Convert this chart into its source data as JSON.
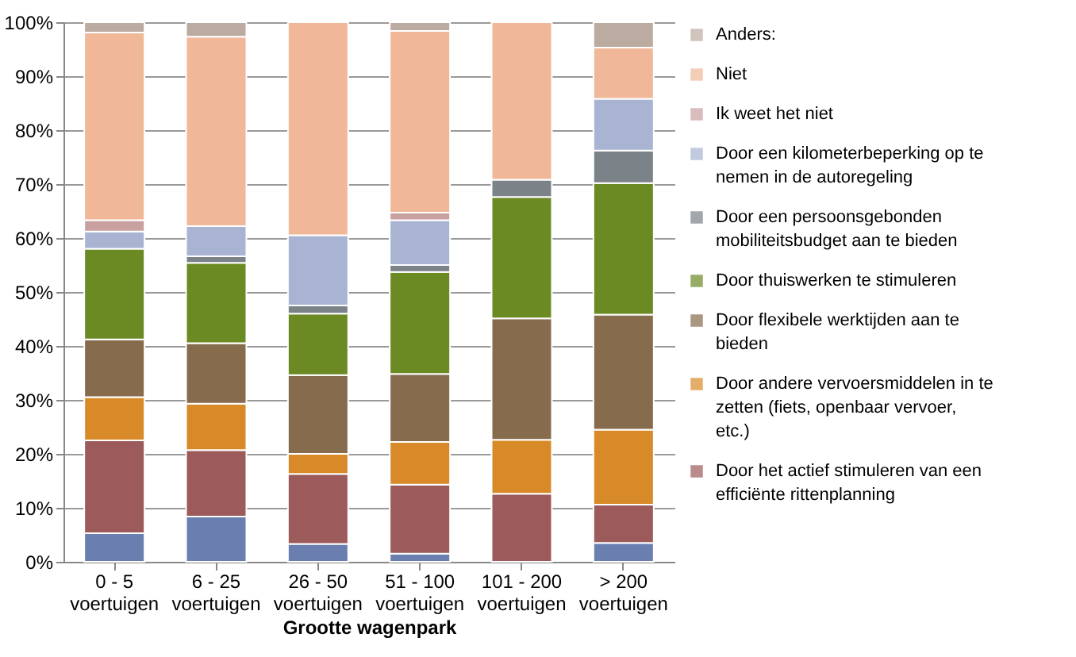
{
  "chart_data": {
    "type": "bar",
    "stacked": true,
    "xlabel": "Grootte wagenpark",
    "categories": [
      "0 - 5 voertuigen",
      "6 - 25 voertuigen",
      "26 - 50 voertuigen",
      "51 - 100 voertuigen",
      "101 - 200 voertuigen",
      "> 200 voertuigen"
    ],
    "ylim": [
      0,
      100
    ],
    "yticks": [
      {
        "value": 0,
        "label": "0%"
      },
      {
        "value": 10,
        "label": "10%"
      },
      {
        "value": 20,
        "label": "20%"
      },
      {
        "value": 30,
        "label": "30%"
      },
      {
        "value": 40,
        "label": "40%"
      },
      {
        "value": 50,
        "label": "50%"
      },
      {
        "value": 60,
        "label": "60%"
      },
      {
        "value": 70,
        "label": "70%"
      },
      {
        "value": 80,
        "label": "80%"
      },
      {
        "value": 90,
        "label": "90%"
      },
      {
        "value": 100,
        "label": "100%"
      }
    ],
    "grid": "y",
    "legend": "right",
    "series": [
      {
        "color": "#6a7fb0",
        "values": [
          5.3,
          8.4,
          3.3,
          1.5,
          null,
          3.5
        ]
      },
      {
        "name": "Door het actief stimuleren van een efficiënte rittenplanning",
        "color": "#9c5a5a",
        "values": [
          17.2,
          12.3,
          13,
          12.8,
          12.6,
          7.1
        ]
      },
      {
        "name": "Door andere vervoersmiddelen in te zetten (fiets, openbaar vervoer, etc.)",
        "color": "#d88a28",
        "values": [
          8,
          8.6,
          3.7,
          7.9,
          10,
          13.9
        ]
      },
      {
        "name": "Door flexibele werktijden aan te bieden",
        "color": "#866b4d",
        "values": [
          10.7,
          11.2,
          14.6,
          12.6,
          22.5,
          21.3
        ]
      },
      {
        "name": "Door thuiswerken te stimuleren",
        "color": "#6b8a24",
        "values": [
          16.8,
          14.9,
          11.4,
          18.9,
          22.5,
          24.4
        ]
      },
      {
        "name": "Door een persoonsgebonden mobiliteitsbudget aan te bieden",
        "color": "#7b8288",
        "values": [
          null,
          1.2,
          1.5,
          1.3,
          3.2,
          6
        ]
      },
      {
        "name": "Door een kilometerbeperking op te nemen in de autoregeling",
        "color": "#a8b4d2",
        "values": [
          3.2,
          5.6,
          13,
          8.3,
          null,
          9.6
        ]
      },
      {
        "name": "Ik weet het niet",
        "color": "#c9a0a0",
        "values": [
          2.1,
          null,
          null,
          1.4,
          null,
          null
        ]
      },
      {
        "name": "Niet",
        "color": "#f0b898",
        "values": [
          34.8,
          35.1,
          39.5,
          33.7,
          29.2,
          9.5
        ]
      },
      {
        "name": "Anders:",
        "color": "#bcaba0",
        "values": [
          1.9,
          2.7,
          null,
          1.6,
          null,
          4.7
        ]
      }
    ]
  }
}
